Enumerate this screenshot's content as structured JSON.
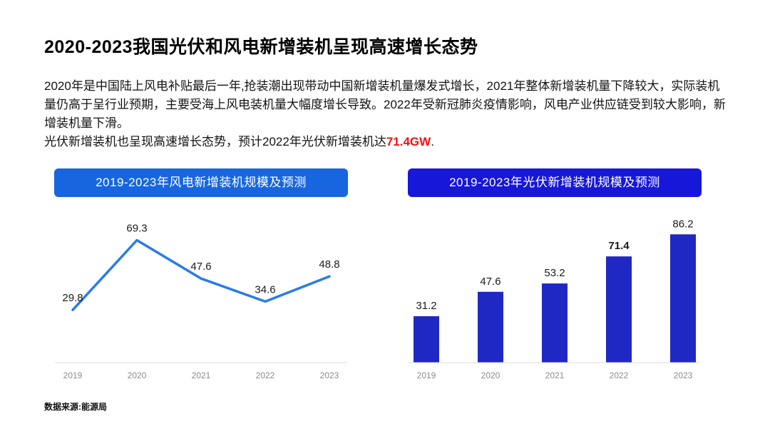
{
  "slide": {
    "title": "2020-2023我国光伏和风电新增装机呈现高速增长态势",
    "paragraph1": "2020年是中国陆上风电补贴最后一年,抢装潮出现带动中国新增装机量爆发式增长，2021年整体新增装机量下降较大，实际装机量仍高于呈行业预期，主要受海上风电装机量大幅度增长导致。2022年受新冠肺炎疫情影响，风电产业供应链受到较大影响，新增装机量下滑。",
    "paragraph2_prefix": "光伏新增装机也呈现高速增长态势，预计2022年光伏新增装机达",
    "paragraph2_highlight": "71.4GW",
    "paragraph2_suffix": ".",
    "source": "数据来源:能源局"
  },
  "colors": {
    "axis": "#DCDCDC",
    "tick": "#8C8C8C",
    "label": "#1A1A1A",
    "red": "#F40F14"
  },
  "chart_data": [
    {
      "type": "line",
      "title": "2019-2023年风电新增装机规模及预测",
      "categories": [
        "2019",
        "2020",
        "2021",
        "2022",
        "2023"
      ],
      "values": [
        29.8,
        69.3,
        47.6,
        34.6,
        48.8
      ],
      "ylabel": "",
      "xlabel": "",
      "ylim": [
        0,
        80
      ],
      "legend": "none",
      "grid": false,
      "line_color": "#2B7BE8",
      "header_bg": "#1766E0"
    },
    {
      "type": "bar",
      "title": "2019-2023年光伏新增装机规模及预测",
      "categories": [
        "2019",
        "2020",
        "2021",
        "2022",
        "2023"
      ],
      "values": [
        31.2,
        47.6,
        53.2,
        71.4,
        86.2
      ],
      "ylabel": "",
      "xlabel": "",
      "ylim": [
        0,
        95
      ],
      "legend": "none",
      "grid": false,
      "highlight_index": 3,
      "highlight_label_color": "#2230E0",
      "bar_color": "#2028C4",
      "header_bg": "#1717D9"
    }
  ]
}
